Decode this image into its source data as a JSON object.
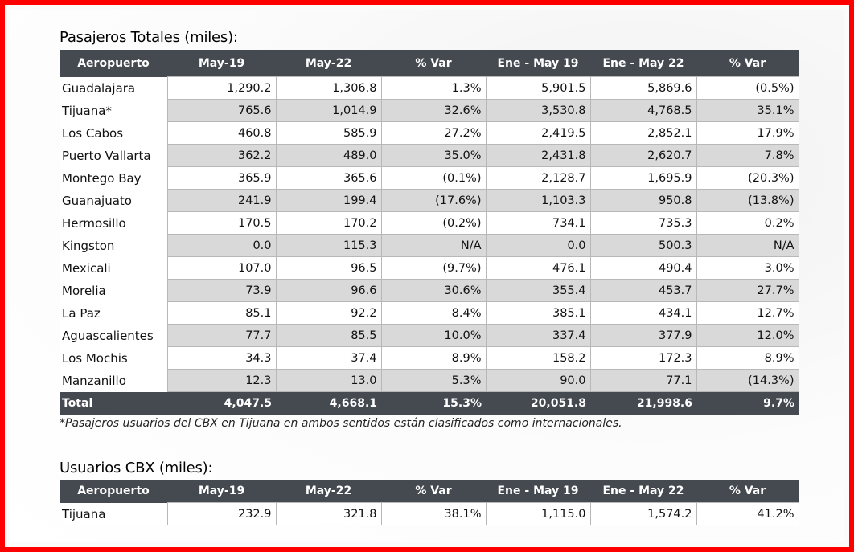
{
  "passengers": {
    "title": "Pasajeros Totales (miles):",
    "headers": [
      "Aeropuerto",
      "May-19",
      "May-22",
      "% Var",
      "Ene - May 19",
      "Ene - May 22",
      "% Var"
    ],
    "rows": [
      [
        "Guadalajara",
        "1,290.2",
        "1,306.8",
        "1.3%",
        "5,901.5",
        "5,869.6",
        "(0.5%)"
      ],
      [
        "Tijuana*",
        "765.6",
        "1,014.9",
        "32.6%",
        "3,530.8",
        "4,768.5",
        "35.1%"
      ],
      [
        "Los Cabos",
        "460.8",
        "585.9",
        "27.2%",
        "2,419.5",
        "2,852.1",
        "17.9%"
      ],
      [
        "Puerto Vallarta",
        "362.2",
        "489.0",
        "35.0%",
        "2,431.8",
        "2,620.7",
        "7.8%"
      ],
      [
        "Montego Bay",
        "365.9",
        "365.6",
        "(0.1%)",
        "2,128.7",
        "1,695.9",
        "(20.3%)"
      ],
      [
        "Guanajuato",
        "241.9",
        "199.4",
        "(17.6%)",
        "1,103.3",
        "950.8",
        "(13.8%)"
      ],
      [
        "Hermosillo",
        "170.5",
        "170.2",
        "(0.2%)",
        "734.1",
        "735.3",
        "0.2%"
      ],
      [
        "Kingston",
        "0.0",
        "115.3",
        "N/A",
        "0.0",
        "500.3",
        "N/A"
      ],
      [
        "Mexicali",
        "107.0",
        "96.5",
        "(9.7%)",
        "476.1",
        "490.4",
        "3.0%"
      ],
      [
        "Morelia",
        "73.9",
        "96.6",
        "30.6%",
        "355.4",
        "453.7",
        "27.7%"
      ],
      [
        "La Paz",
        "85.1",
        "92.2",
        "8.4%",
        "385.1",
        "434.1",
        "12.7%"
      ],
      [
        "Aguascalientes",
        "77.7",
        "85.5",
        "10.0%",
        "337.4",
        "377.9",
        "12.0%"
      ],
      [
        "Los Mochis",
        "34.3",
        "37.4",
        "8.9%",
        "158.2",
        "172.3",
        "8.9%"
      ],
      [
        "Manzanillo",
        "12.3",
        "13.0",
        "5.3%",
        "90.0",
        "77.1",
        "(14.3%)"
      ]
    ],
    "total": [
      "Total",
      "4,047.5",
      "4,668.1",
      "15.3%",
      "20,051.8",
      "21,998.6",
      "9.7%"
    ],
    "footnote": "*Pasajeros usuarios del CBX en Tijuana en ambos sentidos están clasificados como internacionales."
  },
  "cbx": {
    "title": "Usuarios CBX (miles):",
    "headers": [
      "Aeropuerto",
      "May-19",
      "May-22",
      "% Var",
      "Ene - May 19",
      "Ene - May 22",
      "% Var"
    ],
    "rows": [
      [
        "Tijuana",
        "232.9",
        "321.8",
        "38.1%",
        "1,115.0",
        "1,574.2",
        "41.2%"
      ]
    ]
  },
  "colors": {
    "frame": "#ff0000",
    "header_bg": "#454a50",
    "row_alt": "#d9d9d9"
  }
}
